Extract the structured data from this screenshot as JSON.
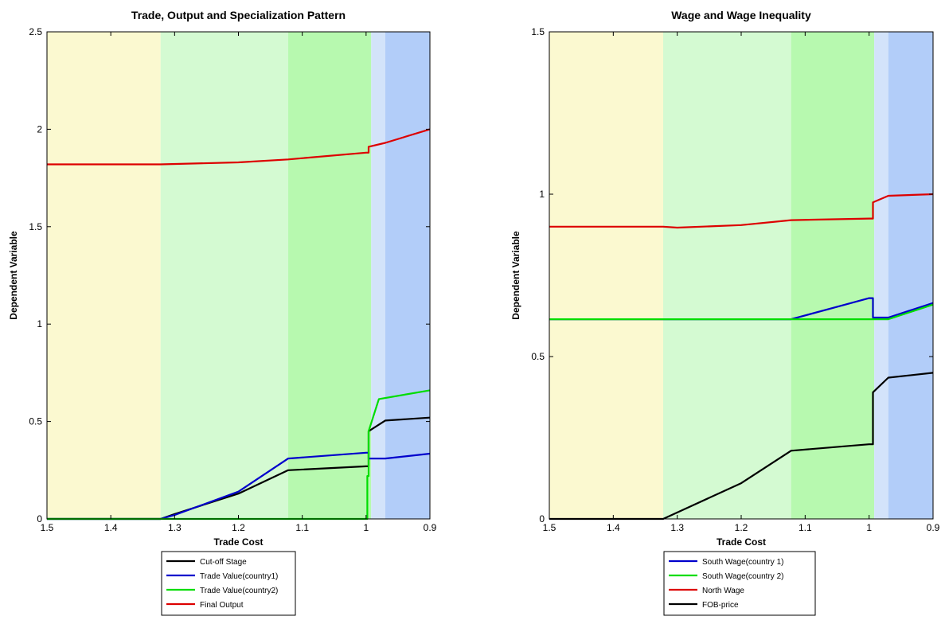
{
  "chart_data": [
    {
      "type": "line",
      "title": "Trade, Output and Specialization Pattern",
      "xlabel": "Trade Cost",
      "ylabel": "Dependent Variable",
      "xlim": [
        1.5,
        0.9
      ],
      "x_reversed": true,
      "ylim": [
        0,
        2.5
      ],
      "xticks": [
        "1.5",
        "1.4",
        "1.3",
        "1.2",
        "1.1",
        "1",
        "0.9"
      ],
      "xtick_values": [
        1.5,
        1.4,
        1.3,
        1.2,
        1.1,
        1.0,
        0.9
      ],
      "yticks": [
        "0",
        "0.5",
        "1",
        "1.5",
        "2",
        "2.5"
      ],
      "ytick_values": [
        0,
        0.5,
        1,
        1.5,
        2,
        2.5
      ],
      "grid": false,
      "legend_position": "below",
      "regions": [
        {
          "from": 1.5,
          "to": 1.322,
          "color": "#fbf9d0"
        },
        {
          "from": 1.322,
          "to": 1.122,
          "color": "#d4fad2"
        },
        {
          "from": 1.122,
          "to": 0.992,
          "color": "#b7f9af"
        },
        {
          "from": 0.992,
          "to": 0.97,
          "color": "#d3e3fa"
        },
        {
          "from": 0.97,
          "to": 0.9,
          "color": "#b2cdf9"
        }
      ],
      "series": [
        {
          "name": "Cut-off Stage",
          "color": "#000000",
          "x": [
            1.5,
            1.322,
            1.3,
            1.2,
            1.122,
            1.0,
            0.996,
            0.996,
            0.97,
            0.9
          ],
          "y": [
            0,
            0,
            0.025,
            0.13,
            0.25,
            0.27,
            0.27,
            0.45,
            0.505,
            0.52
          ]
        },
        {
          "name": "Trade Value(country1)",
          "color": "#0000cc",
          "x": [
            1.5,
            1.322,
            1.3,
            1.2,
            1.122,
            1.0,
            0.996,
            0.996,
            0.97,
            0.9
          ],
          "y": [
            0,
            0,
            0.02,
            0.14,
            0.31,
            0.34,
            0.34,
            0.31,
            0.31,
            0.335
          ]
        },
        {
          "name": "Trade Value(country2)",
          "color": "#00dd00",
          "x": [
            1.5,
            0.998,
            0.998,
            0.996,
            0.996,
            0.98,
            0.9
          ],
          "y": [
            0,
            0,
            0.22,
            0.22,
            0.45,
            0.615,
            0.66
          ]
        },
        {
          "name": "Final Output",
          "color": "#dd0000",
          "x": [
            1.5,
            1.322,
            1.2,
            1.122,
            1.0,
            0.996,
            0.996,
            0.97,
            0.9
          ],
          "y": [
            1.82,
            1.82,
            1.83,
            1.845,
            1.88,
            1.88,
            1.91,
            1.93,
            2.0
          ]
        }
      ]
    },
    {
      "type": "line",
      "title": "Wage and Wage Inequality",
      "xlabel": "Trade Cost",
      "ylabel": "Dependent Variable",
      "xlim": [
        1.5,
        0.9
      ],
      "x_reversed": true,
      "ylim": [
        0,
        1.5
      ],
      "xticks": [
        "1.5",
        "1.4",
        "1.3",
        "1.2",
        "1.1",
        "1",
        "0.9"
      ],
      "xtick_values": [
        1.5,
        1.4,
        1.3,
        1.2,
        1.1,
        1.0,
        0.9
      ],
      "yticks": [
        "0",
        "0.5",
        "1",
        "1.5"
      ],
      "ytick_values": [
        0,
        0.5,
        1,
        1.5
      ],
      "grid": false,
      "legend_position": "below",
      "regions": [
        {
          "from": 1.5,
          "to": 1.322,
          "color": "#fbf9d0"
        },
        {
          "from": 1.322,
          "to": 1.122,
          "color": "#d4fad2"
        },
        {
          "from": 1.122,
          "to": 0.992,
          "color": "#b7f9af"
        },
        {
          "from": 0.992,
          "to": 0.97,
          "color": "#d3e3fa"
        },
        {
          "from": 0.97,
          "to": 0.9,
          "color": "#b2cdf9"
        }
      ],
      "series": [
        {
          "name": "South Wage(country 1)",
          "color": "#0000cc",
          "x": [
            1.5,
            1.122,
            1.0,
            0.994,
            0.994,
            0.97,
            0.9
          ],
          "y": [
            0.615,
            0.615,
            0.68,
            0.68,
            0.62,
            0.62,
            0.665
          ]
        },
        {
          "name": "South Wage(country 2)",
          "color": "#00dd00",
          "x": [
            1.5,
            0.994,
            0.97,
            0.9
          ],
          "y": [
            0.615,
            0.615,
            0.615,
            0.66
          ]
        },
        {
          "name": "North Wage",
          "color": "#dd0000",
          "x": [
            1.5,
            1.322,
            1.3,
            1.2,
            1.122,
            1.0,
            0.994,
            0.994,
            0.97,
            0.9
          ],
          "y": [
            0.9,
            0.9,
            0.897,
            0.905,
            0.92,
            0.925,
            0.925,
            0.975,
            0.995,
            1.0
          ]
        },
        {
          "name": "FOB-price",
          "color": "#000000",
          "x": [
            1.5,
            1.322,
            1.2,
            1.122,
            1.0,
            0.994,
            0.994,
            0.97,
            0.9
          ],
          "y": [
            0,
            0,
            0.11,
            0.21,
            0.23,
            0.23,
            0.39,
            0.435,
            0.45
          ]
        }
      ]
    }
  ]
}
